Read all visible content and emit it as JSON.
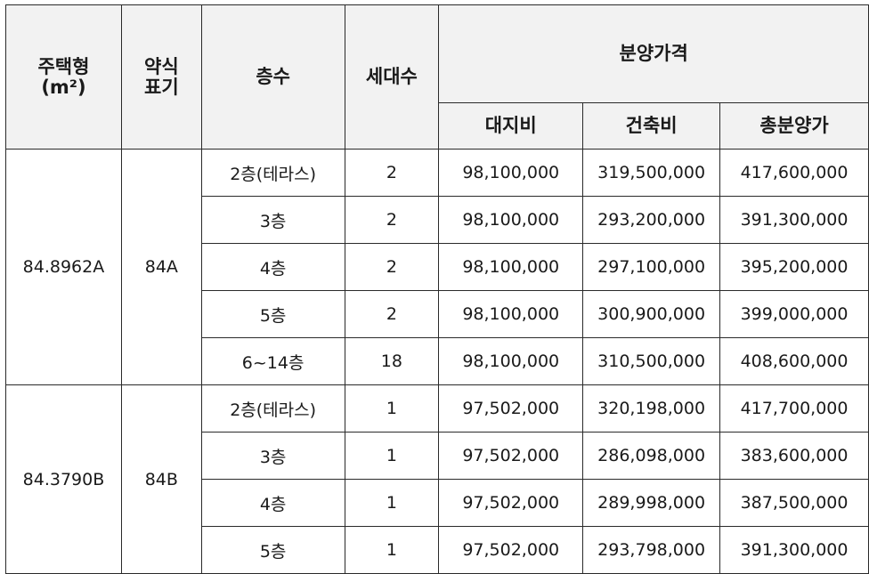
{
  "headers": {
    "house_type": [
      "주택형",
      "(m²)"
    ],
    "abbreviation": [
      "약식",
      "표기"
    ],
    "floor": "층수",
    "households": "세대수",
    "sale_price": "분양가격",
    "land_cost": "대지비",
    "building_cost": "건축비",
    "total_price": "총분양가"
  },
  "groups": [
    {
      "house_type": "84.8962A",
      "abbreviation": "84A",
      "rows": [
        {
          "floor": "2층(테라스)",
          "households": "2",
          "land_cost": "98,100,000",
          "building_cost": "319,500,000",
          "total_price": "417,600,000"
        },
        {
          "floor": "3층",
          "households": "2",
          "land_cost": "98,100,000",
          "building_cost": "293,200,000",
          "total_price": "391,300,000"
        },
        {
          "floor": "4층",
          "households": "2",
          "land_cost": "98,100,000",
          "building_cost": "297,100,000",
          "total_price": "395,200,000"
        },
        {
          "floor": "5층",
          "households": "2",
          "land_cost": "98,100,000",
          "building_cost": "300,900,000",
          "total_price": "399,000,000"
        },
        {
          "floor": "6~14층",
          "households": "18",
          "land_cost": "98,100,000",
          "building_cost": "310,500,000",
          "total_price": "408,600,000"
        }
      ]
    },
    {
      "house_type": "84.3790B",
      "abbreviation": "84B",
      "rows": [
        {
          "floor": "2층(테라스)",
          "households": "1",
          "land_cost": "97,502,000",
          "building_cost": "320,198,000",
          "total_price": "417,700,000"
        },
        {
          "floor": "3층",
          "households": "1",
          "land_cost": "97,502,000",
          "building_cost": "286,098,000",
          "total_price": "383,600,000"
        },
        {
          "floor": "4층",
          "households": "1",
          "land_cost": "97,502,000",
          "building_cost": "289,998,000",
          "total_price": "387,500,000"
        },
        {
          "floor": "5층",
          "households": "1",
          "land_cost": "97,502,000",
          "building_cost": "293,798,000",
          "total_price": "391,300,000"
        }
      ]
    }
  ]
}
